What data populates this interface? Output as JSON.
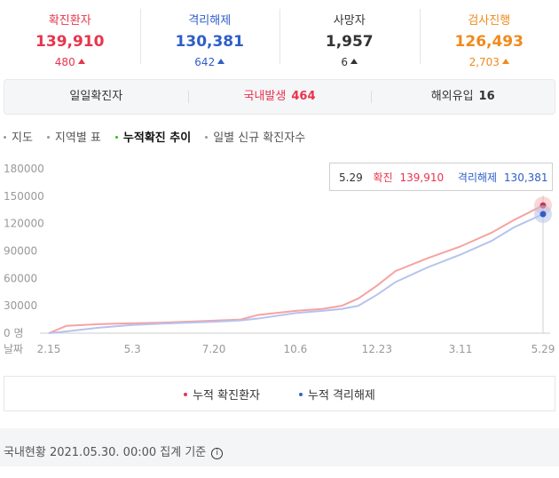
{
  "stats": [
    {
      "label": "확진환자",
      "value": "139,910",
      "change": "480",
      "color": "#e8344e"
    },
    {
      "label": "격리해제",
      "value": "130,381",
      "change": "642",
      "color": "#2f5ec8"
    },
    {
      "label": "사망자",
      "value": "1,957",
      "change": "6",
      "color": "#333333"
    },
    {
      "label": "검사진행",
      "value": "126,493",
      "change": "2,703",
      "color": "#f08a1c"
    }
  ],
  "subbar": {
    "daily": {
      "label": "일일확진자"
    },
    "domestic": {
      "label": "국내발생",
      "value": "464"
    },
    "overseas": {
      "label": "해외유입",
      "value": "16"
    }
  },
  "tabs": [
    "지도",
    "지역별 표",
    "누적확진 추이",
    "일별 신규 확진자수"
  ],
  "active_tab": "누적확진 추이",
  "tooltip": {
    "date": "5.29",
    "confirmed_label": "확진",
    "confirmed_value": "139,910",
    "released_label": "격리해제",
    "released_value": "130,381"
  },
  "legend": [
    {
      "label": "누적 확진환자",
      "color": "#e8344e"
    },
    {
      "label": "누적 격리해제",
      "color": "#3a63c9"
    }
  ],
  "footer": {
    "text": "국내현황 2021.05.30. 00:00 집계 기준",
    "icon": "info-icon"
  },
  "chart_data": {
    "type": "line",
    "x_label": "날짜",
    "x_ticks": [
      "2.15",
      "5.3",
      "7.20",
      "10.6",
      "12.23",
      "3.11",
      "5.29"
    ],
    "y_ticks": [
      "180000",
      "150000",
      "120000",
      "90000",
      "60000",
      "30000",
      "0 명"
    ],
    "ylim": [
      0,
      180000
    ],
    "grid": false,
    "series": [
      {
        "name": "누적 확진환자",
        "color": "#f5a3a3",
        "points": [
          [
            "2.15",
            0
          ],
          [
            "3.1",
            8000
          ],
          [
            "4.1",
            9900
          ],
          [
            "5.3",
            10800
          ],
          [
            "6.1",
            11500
          ],
          [
            "7.20",
            13700
          ],
          [
            "8.15",
            15000
          ],
          [
            "9.1",
            20000
          ],
          [
            "10.6",
            24500
          ],
          [
            "11.1",
            26500
          ],
          [
            "11.20",
            30000
          ],
          [
            "12.5",
            38000
          ],
          [
            "12.23",
            52000
          ],
          [
            "1.10",
            68000
          ],
          [
            "2.10",
            82000
          ],
          [
            "3.11",
            95000
          ],
          [
            "4.10",
            110000
          ],
          [
            "5.1",
            124000
          ],
          [
            "5.29",
            139910
          ]
        ]
      },
      {
        "name": "누적 격리해제",
        "color": "#b6c3ee",
        "points": [
          [
            "2.15",
            0
          ],
          [
            "3.1",
            2000
          ],
          [
            "4.1",
            6000
          ],
          [
            "5.3",
            9000
          ],
          [
            "6.1",
            10500
          ],
          [
            "7.20",
            12500
          ],
          [
            "8.15",
            14000
          ],
          [
            "9.1",
            16000
          ],
          [
            "10.6",
            22000
          ],
          [
            "11.1",
            24500
          ],
          [
            "11.20",
            26500
          ],
          [
            "12.5",
            30000
          ],
          [
            "12.23",
            42000
          ],
          [
            "1.10",
            56000
          ],
          [
            "2.10",
            72000
          ],
          [
            "3.11",
            86000
          ],
          [
            "4.10",
            101000
          ],
          [
            "5.1",
            116000
          ],
          [
            "5.29",
            130381
          ]
        ]
      }
    ]
  }
}
